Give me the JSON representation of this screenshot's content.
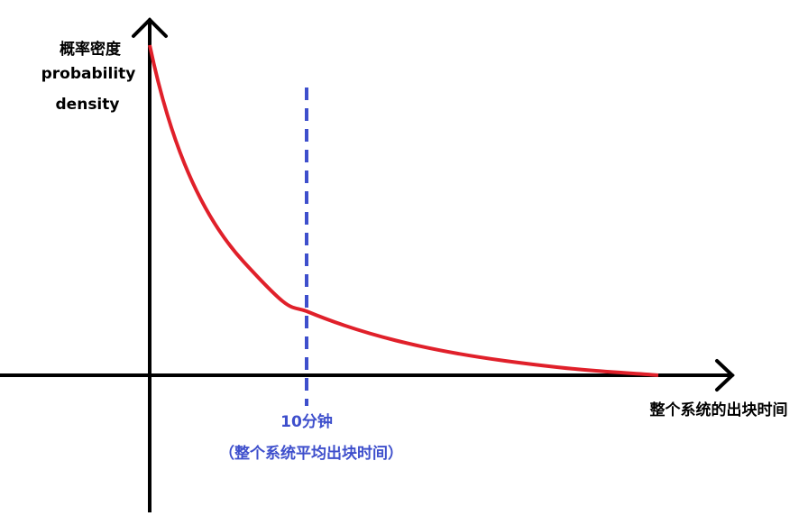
{
  "y_axis_label": {
    "line1": "概率密度",
    "line2": "probability",
    "line3": "density"
  },
  "marker_label": {
    "line1": "10分钟",
    "line2": "（整个系统平均出块时间）"
  },
  "x_axis_label": "整个系统的出块时间"
}
